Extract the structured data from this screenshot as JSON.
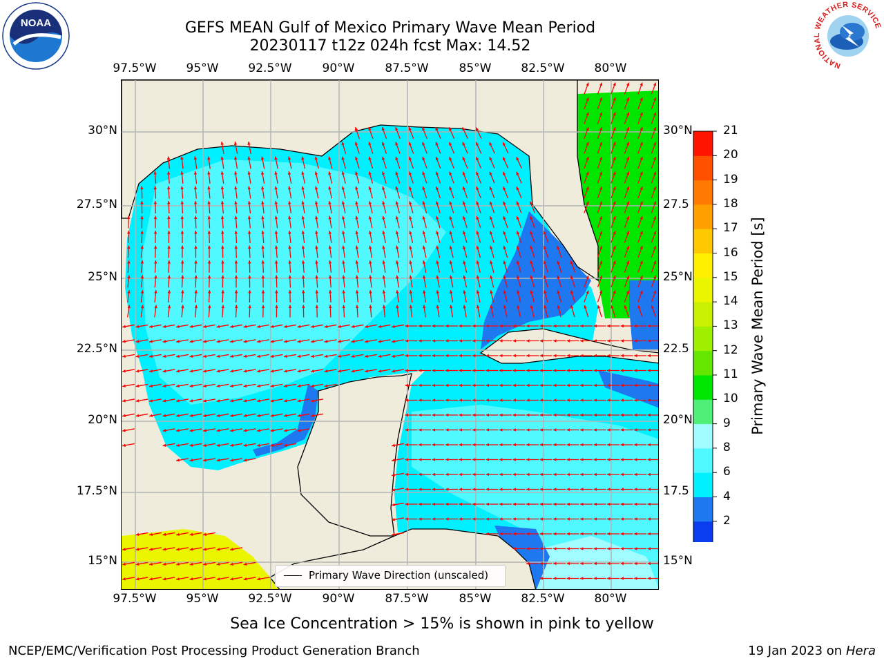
{
  "title": {
    "line1": "GEFS MEAN Gulf of Mexico Primary Wave Mean Period",
    "line2": "20230117 t12z 024h fcst   Max: 14.52"
  },
  "axes": {
    "lon_labels": [
      "97.5°W",
      "95°W",
      "92.5°W",
      "90°W",
      "87.5°W",
      "85°W",
      "82.5°W",
      "80°W"
    ],
    "lat_labels_left": [
      "30°N",
      "27.5°N",
      "25°N",
      "22.5°N",
      "20°N",
      "17.5°N",
      "15°N"
    ],
    "lat_labels_right": [
      "30°N",
      "27.5",
      "25°N",
      "22.5",
      "20°N",
      "17.5",
      "15°N"
    ]
  },
  "colorbar": {
    "label": "Primary Wave Mean Period [s]",
    "ticks": [
      "2",
      "4",
      "6",
      "8",
      "9",
      "10",
      "11",
      "12",
      "13",
      "14",
      "15",
      "16",
      "17",
      "18",
      "19",
      "20",
      "21"
    ],
    "colors": [
      "#0a3cf0",
      "#1e78f0",
      "#00f0ff",
      "#50f8ff",
      "#a0fcff",
      "#50f078",
      "#00e600",
      "#64e600",
      "#a0ee00",
      "#c8f000",
      "#ecf500",
      "#fff000",
      "#ffc800",
      "#ffa000",
      "#ff7800",
      "#ff5000",
      "#ff1400"
    ],
    "under_color": "#0000ff"
  },
  "legend": {
    "label": "Primary Wave Direction (unscaled)"
  },
  "ice_note": "Sea Ice Concentration > 15% is shown in pink to yellow",
  "footer": {
    "left": "NCEP/EMC/Verification Post Processing Product Generation Branch",
    "right_prefix": "19 Jan 2023 on ",
    "right_host": "Hera"
  },
  "logos": {
    "left": "NOAA",
    "right_text": "NATIONAL WEATHER SERVICE"
  },
  "colors": {
    "land": "#efecdc",
    "arrow": "#ff0000",
    "grid": "#b4b4b4"
  }
}
